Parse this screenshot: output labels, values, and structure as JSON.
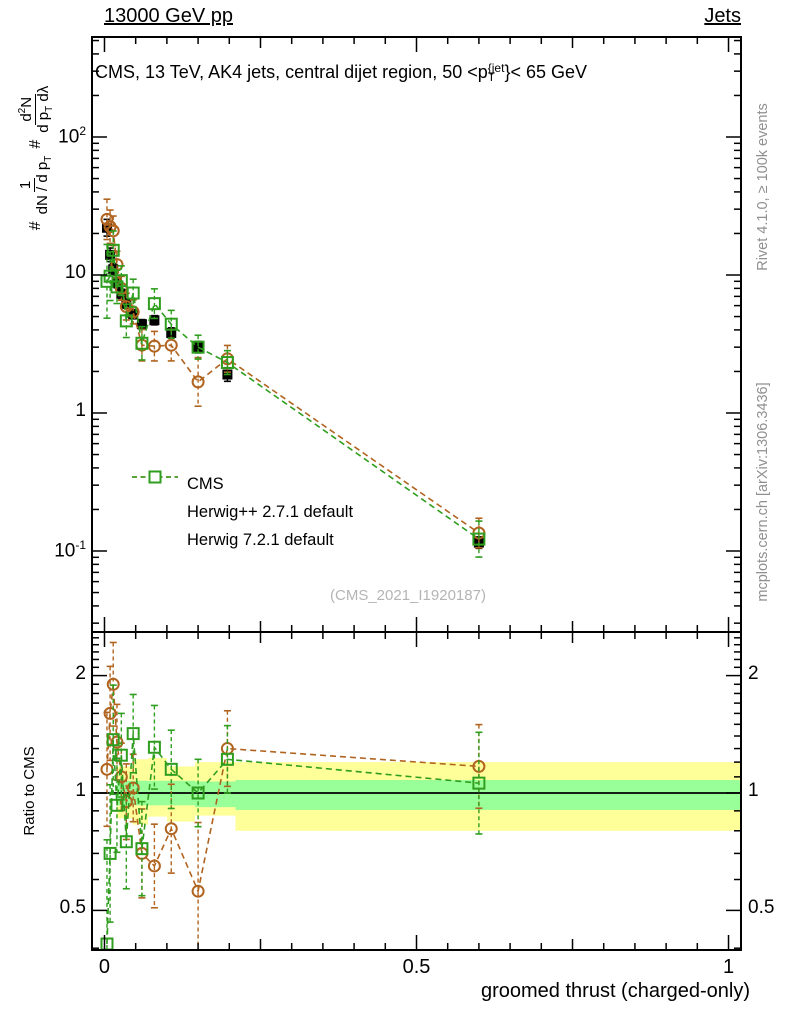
{
  "header": {
    "left": "13000 GeV pp",
    "right": "Jets"
  },
  "title": {
    "pre": "CMS, 13 TeV, AK4 jets, central dijet region, 50 <p",
    "sup": "{jet",
    "sub": "T",
    "post": "}< 65 GeV"
  },
  "ylabel": {
    "hash1": "#",
    "num1": "1",
    "den1_pre": "dN / d p",
    "den1_sub": "T",
    "hash2": "#",
    "num2_pre": "d",
    "num2_sup": "2",
    "num2_post": "N",
    "den2_pre": "d p",
    "den2_sub": "T",
    "den2_post": " dλ"
  },
  "ratio_label": "Ratio to CMS",
  "xlabel": "groomed thrust (charged-only)",
  "watermark": "(CMS_2021_I1920187)",
  "side_notes": {
    "top": "Rivet 4.1.0, ≥ 100k events",
    "bottom": "mcplots.cern.ch [arXiv:1306.3436]"
  },
  "legend": {
    "items": [
      {
        "label": "CMS",
        "marker": "filled-square",
        "color": "#000000",
        "dashed": false
      },
      {
        "label": "Herwig++ 2.7.1 default",
        "marker": "open-circle",
        "color": "#b06420",
        "dashed": true
      },
      {
        "label": "Herwig 7.2.1 default",
        "marker": "open-square",
        "color": "#2f9e1f",
        "dashed": true
      }
    ]
  },
  "chart_data": {
    "type": "scatter",
    "title": "CMS, 13 TeV, AK4 jets, central dijet region, 50 < pT{jet} < 65 GeV",
    "xlabel": "groomed thrust (charged-only)",
    "ylabel": "# 1/(dN/dpT)  # d2N/(dpT dlambda)",
    "x_range": [
      -0.02,
      1.02
    ],
    "main_axis": {
      "scale": "log",
      "range": [
        0.026,
        530
      ],
      "ticks": [
        {
          "v": 100,
          "base": "10",
          "sup": "2"
        },
        {
          "v": 10,
          "base": "10"
        },
        {
          "v": 1,
          "base": "1"
        },
        {
          "v": 0.1,
          "base": "10",
          "sup": "-1"
        }
      ]
    },
    "ratio_axis": {
      "scale": "log",
      "range": [
        0.4,
        2.6
      ],
      "ticks": [
        {
          "v": 2,
          "label": "2"
        },
        {
          "v": 1,
          "label": "1"
        },
        {
          "v": 0.5,
          "label": "0.5"
        }
      ]
    },
    "x_ticks": {
      "major": [
        {
          "v": 0,
          "label": "0"
        },
        {
          "v": 0.5,
          "label": "0.5"
        },
        {
          "v": 1,
          "label": "1"
        }
      ],
      "medium": [
        0.25,
        0.75
      ],
      "minor_step": 0.05
    },
    "x": [
      0.004,
      0.009,
      0.014,
      0.02,
      0.027,
      0.035,
      0.046,
      0.06,
      0.08,
      0.107,
      0.15,
      0.197,
      0.6
    ],
    "series": [
      {
        "name": "CMS",
        "role": "reference",
        "marker": "filled-square",
        "color": "#000000",
        "values": [
          22,
          14,
          11,
          8.8,
          7.3,
          6.2,
          5.2,
          4.4,
          4.7,
          3.8,
          3.0,
          1.9,
          0.115
        ],
        "err_frac": [
          0.15,
          0.12,
          0.1,
          0.09,
          0.08,
          0.08,
          0.08,
          0.08,
          0.08,
          0.09,
          0.1,
          0.12,
          0.1
        ]
      },
      {
        "name": "Herwig++ 2.7.1 default",
        "role": "mc",
        "marker": "open-circle",
        "color": "#b06420",
        "values": [
          25.3,
          22.4,
          20.9,
          11.9,
          8.0,
          5.9,
          5.4,
          3.1,
          3.05,
          3.1,
          1.68,
          2.47,
          0.135
        ],
        "ratio": [
          1.15,
          1.6,
          1.9,
          1.35,
          1.1,
          0.95,
          1.03,
          0.7,
          0.65,
          0.81,
          0.56,
          1.3,
          1.17
        ],
        "err_frac": [
          0.4,
          0.32,
          0.28,
          0.25,
          0.22,
          0.25,
          0.22,
          0.3,
          0.28,
          0.3,
          0.5,
          0.25,
          0.28
        ]
      },
      {
        "name": "Herwig 7.2.1 default",
        "role": "mc",
        "marker": "open-square",
        "color": "#2f9e1f",
        "values": [
          9.0,
          9.8,
          15.1,
          8.2,
          9.1,
          4.65,
          7.4,
          3.2,
          6.2,
          4.4,
          3.0,
          2.32,
          0.122
        ],
        "ratio": [
          0.41,
          0.7,
          1.37,
          0.93,
          1.25,
          0.75,
          1.42,
          0.72,
          1.31,
          1.15,
          1.0,
          1.22,
          1.06
        ],
        "err_frac": [
          0.85,
          0.5,
          0.38,
          0.32,
          0.28,
          0.32,
          0.26,
          0.32,
          0.28,
          0.26,
          0.22,
          0.22,
          0.35
        ]
      }
    ],
    "ratio_bands": {
      "yellow_color": "#ffff99",
      "green_color": "#99ff99",
      "yellow": [
        [
          0.02,
          0.045,
          0.86,
          1.17
        ],
        [
          0.045,
          0.07,
          0.83,
          1.22
        ],
        [
          0.07,
          0.1,
          0.87,
          1.23
        ],
        [
          0.1,
          0.145,
          0.845,
          1.17
        ],
        [
          0.145,
          0.21,
          0.875,
          1.2
        ],
        [
          0.21,
          1.02,
          0.8,
          1.2
        ]
      ],
      "green": [
        [
          0.02,
          0.145,
          0.93,
          1.075
        ],
        [
          0.145,
          0.21,
          0.92,
          1.07
        ],
        [
          0.21,
          1.02,
          0.905,
          1.08
        ]
      ]
    },
    "reference_line": 1
  }
}
